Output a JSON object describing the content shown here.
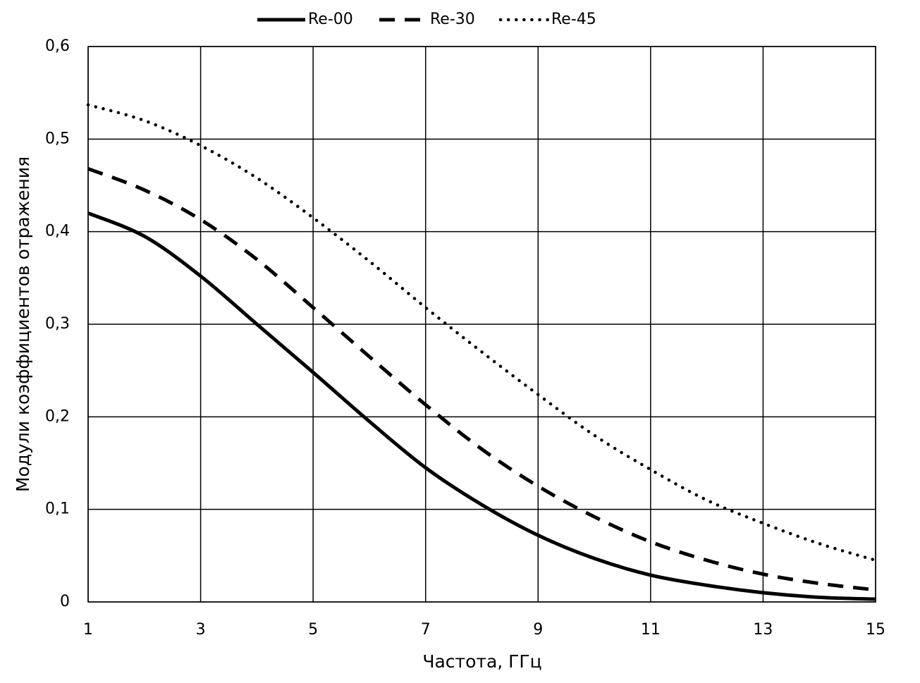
{
  "chart_data": {
    "type": "line",
    "x": [
      1,
      2,
      3,
      4,
      5,
      6,
      7,
      8,
      9,
      10,
      11,
      12,
      13,
      14,
      15
    ],
    "series": [
      {
        "name": "Re-00",
        "color": "#000000",
        "dash": "solid",
        "values": [
          0.42,
          0.395,
          0.352,
          0.3,
          0.248,
          0.195,
          0.145,
          0.105,
          0.072,
          0.047,
          0.029,
          0.018,
          0.01,
          0.005,
          0.003
        ]
      },
      {
        "name": "Re-30",
        "color": "#000000",
        "dash": "dashed",
        "values": [
          0.468,
          0.445,
          0.413,
          0.37,
          0.318,
          0.265,
          0.213,
          0.165,
          0.125,
          0.092,
          0.065,
          0.045,
          0.03,
          0.02,
          0.013
        ]
      },
      {
        "name": "Re-45",
        "color": "#000000",
        "dash": "dotted",
        "values": [
          0.537,
          0.52,
          0.493,
          0.458,
          0.415,
          0.368,
          0.318,
          0.27,
          0.224,
          0.18,
          0.143,
          0.11,
          0.085,
          0.063,
          0.045
        ]
      }
    ],
    "x_label": "Частота, ГГц",
    "y_label": "Модули коэффициентов отражения",
    "xlim": [
      1,
      15
    ],
    "xticks": [
      1,
      3,
      5,
      7,
      9,
      11,
      13,
      15
    ],
    "ylim": [
      0,
      0.6
    ],
    "yticks": [
      0,
      {
        "value": 0.1,
        "label": "0,1"
      },
      {
        "value": 0.2,
        "label": "0,2"
      },
      {
        "value": 0.3,
        "label": "0,3"
      },
      {
        "value": 0.4,
        "label": "0,4"
      },
      {
        "value": 0.5,
        "label": "0,5"
      },
      {
        "value": 0.6,
        "label": "0,6"
      }
    ],
    "grid": true,
    "legend": "top"
  }
}
